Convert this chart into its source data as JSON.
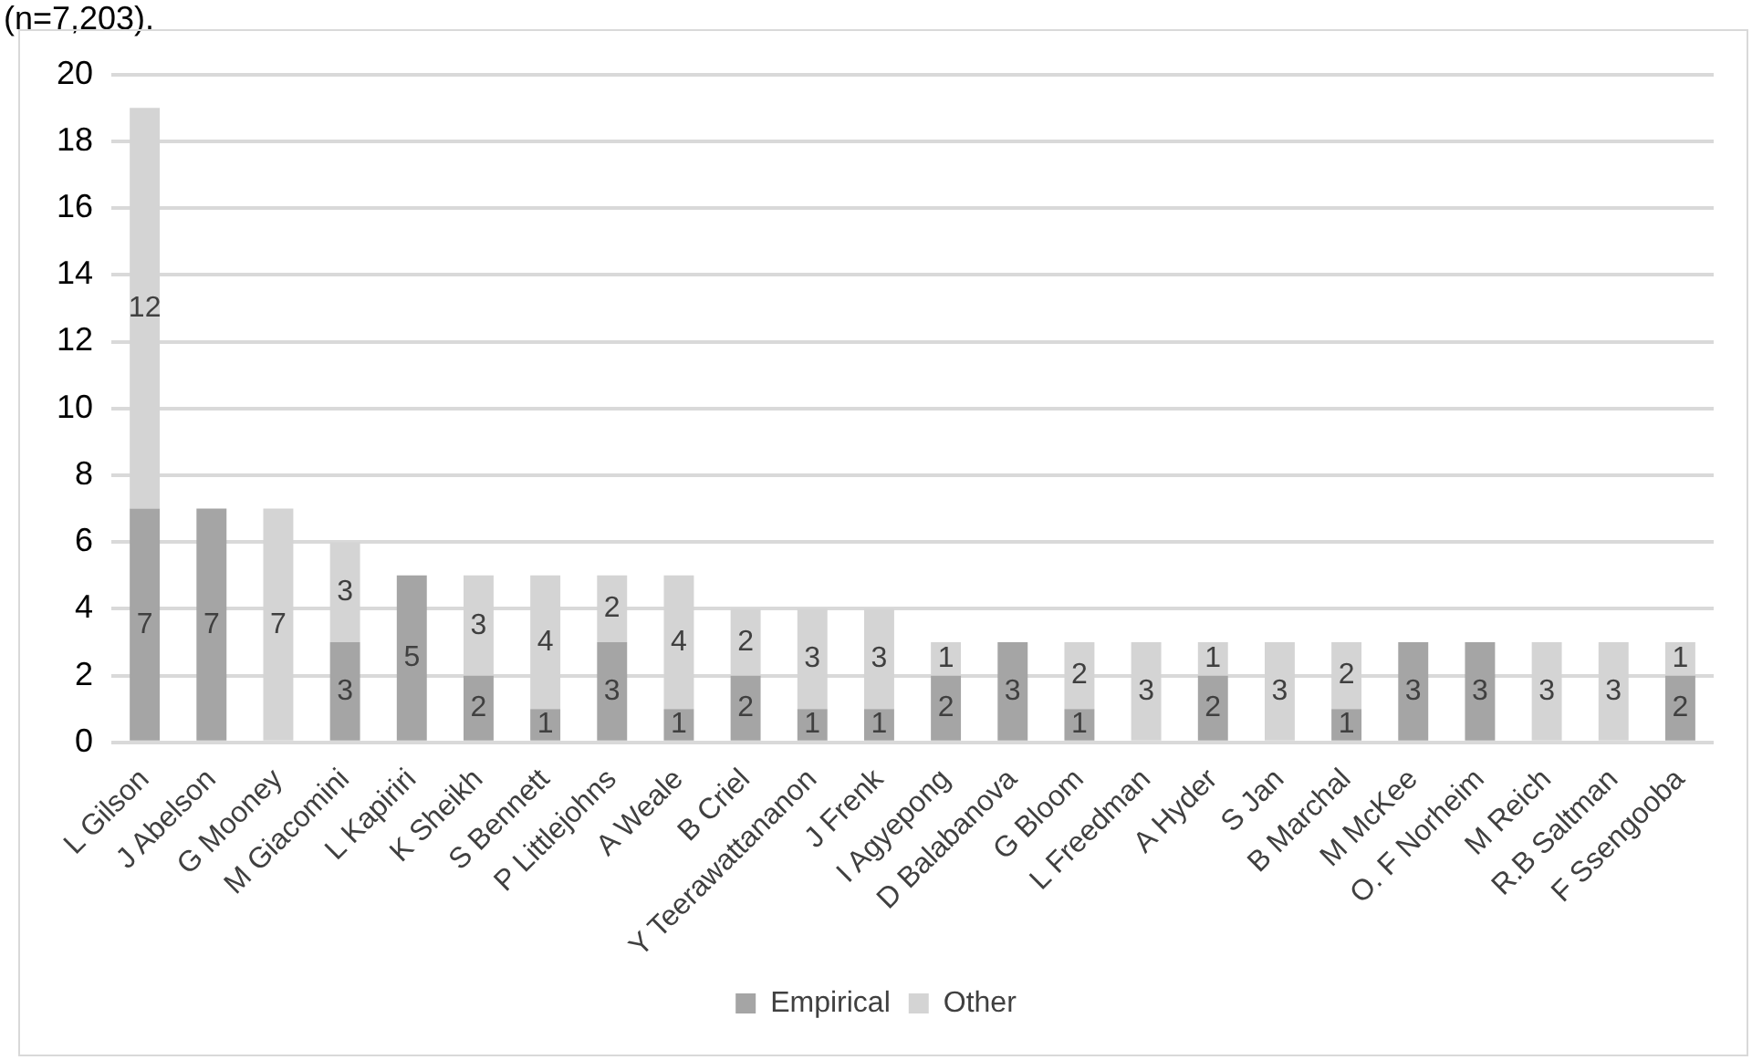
{
  "chart_data": {
    "type": "bar",
    "stacked": true,
    "annotations": [
      "(n=7,203)."
    ],
    "categories": [
      "L Gilson",
      "J Abelson",
      "G Mooney",
      "M Giacomini",
      "L Kapiriri",
      "K Sheikh",
      "S Bennett",
      "P Littlejohns",
      "A Weale",
      "B Criel",
      "Y Teerawattananon",
      "J Frenk",
      "I Agyepong",
      "D Balabanova",
      "G Bloom",
      "L Freedman",
      "A Hyder",
      "S Jan",
      "B Marchal",
      "M McKee",
      "O. F Norheim",
      "M Reich",
      "R.B Saltman",
      "F Ssengooba"
    ],
    "series": [
      {
        "name": "Empirical",
        "color": "#a5a5a5",
        "values": [
          7,
          7,
          0,
          3,
          5,
          2,
          1,
          3,
          1,
          2,
          1,
          1,
          2,
          3,
          1,
          0,
          2,
          0,
          1,
          3,
          3,
          0,
          0,
          2
        ],
        "value_labels": [
          "7",
          "7",
          null,
          "3",
          "5",
          "2",
          "1",
          "3",
          "1",
          "2",
          "1",
          "1",
          "2",
          "3",
          "1",
          null,
          "2",
          null,
          "1",
          "3",
          "3",
          null,
          null,
          "2"
        ]
      },
      {
        "name": "Other",
        "color": "#d4d4d4",
        "values": [
          12,
          0,
          7,
          3,
          0,
          3,
          4,
          2,
          4,
          2,
          3,
          3,
          1,
          0,
          2,
          3,
          1,
          3,
          2,
          0,
          0,
          3,
          3,
          1
        ],
        "value_labels": [
          "12",
          null,
          "7",
          "3",
          null,
          "3",
          "4",
          "2",
          "4",
          "2",
          "3",
          "3",
          "1",
          null,
          "2",
          "3",
          "1",
          "3",
          "2",
          null,
          null,
          "3",
          "3",
          "1"
        ]
      }
    ],
    "ylim": [
      0,
      20
    ],
    "yticks": [
      0,
      2,
      4,
      6,
      8,
      10,
      12,
      14,
      16,
      18,
      20
    ],
    "grid": "y",
    "legend": "bottom"
  }
}
